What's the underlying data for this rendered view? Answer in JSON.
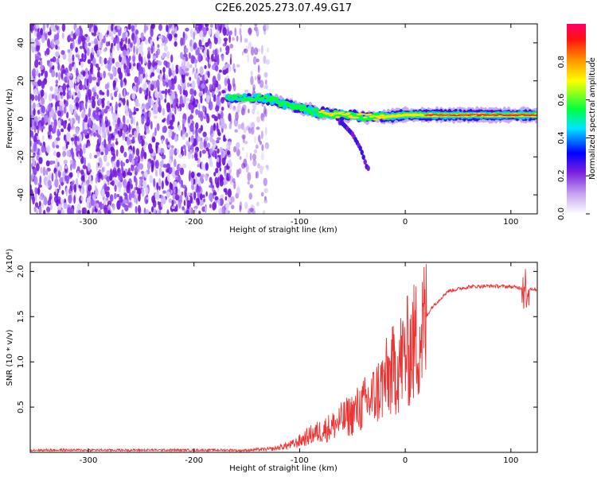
{
  "title": "C2E6.2025.273.07.49.G17",
  "chart_data": [
    {
      "type": "heatmap",
      "xlabel": "Height of straight line (km)",
      "ylabel": "Frequency (Hz)",
      "xlim": [
        -355,
        125
      ],
      "ylim": [
        -50,
        50
      ],
      "xticks": [
        -300,
        -200,
        -100,
        0,
        100
      ],
      "yticks": [
        -40,
        -20,
        0,
        20,
        40
      ],
      "xtick_labels": [
        "-300",
        "-200",
        "-100",
        "0",
        "100"
      ],
      "ytick_labels": [
        "-40",
        "-20",
        "0",
        "20",
        "40"
      ],
      "colorbar": {
        "label": "Normalized spectral amplitude",
        "range": [
          0,
          1
        ],
        "ticks": [
          0.0,
          0.2,
          0.4,
          0.6,
          0.8
        ],
        "tick_labels": [
          "0.0",
          "0.2",
          "0.4",
          "0.6",
          "0.8"
        ],
        "colors": [
          "#ffffff",
          "#8a2be2",
          "#0000ff",
          "#00ffff",
          "#00ff00",
          "#ffff00",
          "#ff8000",
          "#ff0000",
          "#ff0066"
        ]
      },
      "ridge": [
        {
          "x": -165,
          "f": 11
        },
        {
          "x": -140,
          "f": 11
        },
        {
          "x": -125,
          "f": 10
        },
        {
          "x": -110,
          "f": 7
        },
        {
          "x": -95,
          "f": 5
        },
        {
          "x": -80,
          "f": 3
        },
        {
          "x": -60,
          "f": 2
        },
        {
          "x": -40,
          "f": 1
        },
        {
          "x": -20,
          "f": 1
        },
        {
          "x": 0,
          "f": 2
        },
        {
          "x": 20,
          "f": 2
        },
        {
          "x": 40,
          "f": 2
        },
        {
          "x": 60,
          "f": 2
        },
        {
          "x": 80,
          "f": 2
        },
        {
          "x": 100,
          "f": 2
        },
        {
          "x": 125,
          "f": 2
        }
      ],
      "branch": [
        {
          "x": -60,
          "f": -2
        },
        {
          "x": -50,
          "f": -8
        },
        {
          "x": -42,
          "f": -16
        },
        {
          "x": -36,
          "f": -26
        }
      ]
    },
    {
      "type": "line",
      "xlabel": "Height of straight line (km)",
      "ylabel": "SNR (10 * v/v)",
      "y_multiplier": "(x10⁴)",
      "xlim": [
        -355,
        125
      ],
      "ylim": [
        0,
        2.1
      ],
      "xticks": [
        -300,
        -200,
        -100,
        0,
        100
      ],
      "yticks": [
        0.5,
        1.0,
        1.5,
        2.0
      ],
      "xtick_labels": [
        "-300",
        "-200",
        "-100",
        "0",
        "100"
      ],
      "ytick_labels": [
        "0.5",
        "1.0",
        "1.5",
        "2.0"
      ],
      "color": "#ee3333",
      "envelope": [
        {
          "x": -355,
          "y": 0.02
        },
        {
          "x": -160,
          "y": 0.02
        },
        {
          "x": -125,
          "y": 0.04
        },
        {
          "x": -105,
          "y": 0.1
        },
        {
          "x": -90,
          "y": 0.2
        },
        {
          "x": -70,
          "y": 0.3
        },
        {
          "x": -50,
          "y": 0.45
        },
        {
          "x": -30,
          "y": 0.65
        },
        {
          "x": -18,
          "y": 0.85
        },
        {
          "x": -5,
          "y": 1.05
        },
        {
          "x": 10,
          "y": 1.3
        },
        {
          "x": 25,
          "y": 1.6
        },
        {
          "x": 40,
          "y": 1.78
        },
        {
          "x": 60,
          "y": 1.83
        },
        {
          "x": 80,
          "y": 1.84
        },
        {
          "x": 100,
          "y": 1.83
        },
        {
          "x": 125,
          "y": 1.8
        }
      ]
    }
  ]
}
